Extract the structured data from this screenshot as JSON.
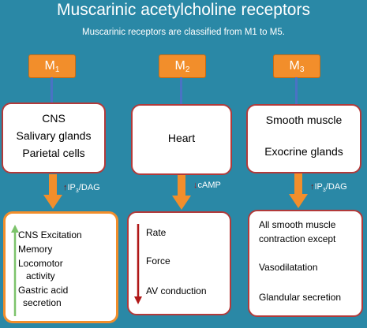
{
  "title": "Muscarinic acetylcholine receptors",
  "subtitle": "Muscarinic receptors are classified from M1 to M5.",
  "receptors": [
    {
      "label_main": "M",
      "label_sub": "1",
      "locations": [
        "CNS",
        "Salivary glands",
        "Parietal cells"
      ],
      "messenger_arrow": "↑",
      "messenger_main": "IP",
      "messenger_sub": "3",
      "messenger_rest": "/DAG",
      "effects": [
        "CNS Excitation",
        "Memory",
        "Locomotor",
        "activity",
        "Gastric acid",
        "secretion"
      ]
    },
    {
      "label_main": "M",
      "label_sub": "2",
      "locations": [
        "Heart"
      ],
      "messenger_arrow": "↓",
      "messenger_main": "cAMP",
      "effects": [
        "Rate",
        "Force",
        "AV conduction"
      ]
    },
    {
      "label_main": "M",
      "label_sub": "3",
      "locations": [
        "Smooth muscle",
        "Exocrine glands"
      ],
      "messenger_arrow": "↑",
      "messenger_main": "IP",
      "messenger_sub": "3",
      "messenger_rest": "/DAG",
      "effects": [
        "All smooth muscle",
        "contraction except",
        "Vasodilatation",
        "Glandular secretion"
      ]
    }
  ],
  "colors": {
    "background": "#2a88a6",
    "receptor_box": "#f28e2b",
    "box_border": "#b23a3a",
    "connector": "#4a72c4",
    "increase_arrow": "#7cc36b",
    "decrease_arrow": "#b01818"
  }
}
